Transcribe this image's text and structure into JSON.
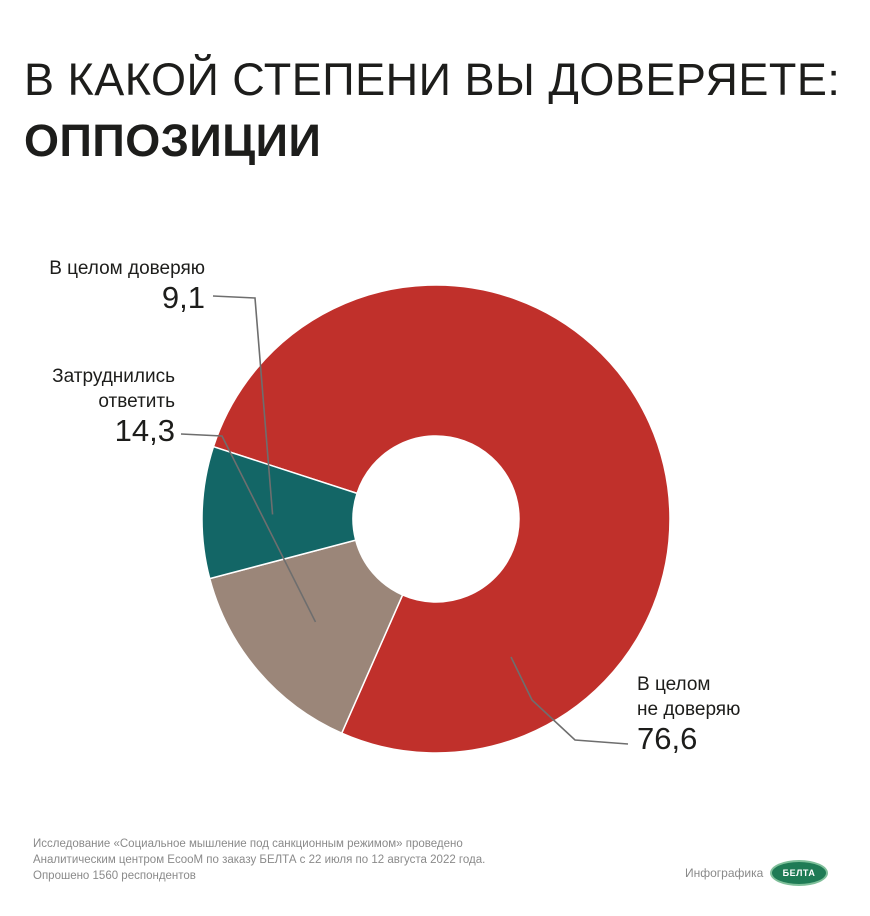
{
  "title": {
    "line1": "В КАКОЙ СТЕПЕНИ ВЫ ДОВЕРЯЕТЕ:",
    "line2": "ОППОЗИЦИИ"
  },
  "chart_data": {
    "type": "pie",
    "variant": "donut",
    "slices": [
      {
        "label": "В целом не доверяю",
        "label_lines": [
          "В целом",
          "не доверяю"
        ],
        "value": 76.6,
        "display": "76,6",
        "color": "#c0302b"
      },
      {
        "label": "Затруднились ответить",
        "label_lines": [
          "Затруднились",
          "ответить"
        ],
        "value": 14.3,
        "display": "14,3",
        "color": "#9b8679"
      },
      {
        "label": "В целом доверяю",
        "label_lines": [
          "В целом доверяю"
        ],
        "value": 9.1,
        "display": "9,1",
        "color": "#136666"
      }
    ]
  },
  "footnote": {
    "lines": [
      "Исследование «Социальное мышление под санкционным режимом» проведено",
      "Аналитическим центром EcooM по заказу БЕЛТА с 22 июля по 12 августа 2022 года.",
      "Опрошено 1560 респондентов"
    ]
  },
  "credit": {
    "text": "Инфографика",
    "logo_text": "БЕЛТА"
  }
}
